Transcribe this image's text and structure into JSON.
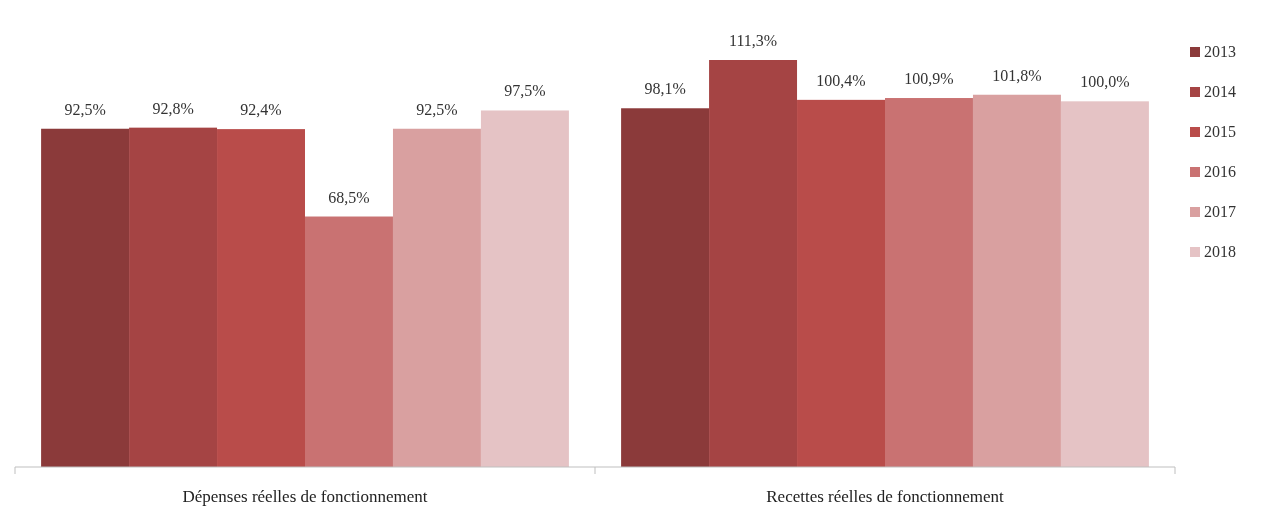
{
  "chart_data": {
    "type": "bar",
    "categories": [
      "Dépenses réelles de fonctionnement",
      "Recettes réelles de fonctionnement"
    ],
    "legend": "right",
    "series": [
      {
        "name": "2013",
        "color": "#8b3a3a",
        "values": [
          92.5,
          98.1
        ],
        "value_labels": [
          "92,5%",
          "98,1%"
        ]
      },
      {
        "name": "2014",
        "color": "#a54444",
        "values": [
          92.8,
          111.3
        ],
        "value_labels": [
          "92,8%",
          "111,3%"
        ]
      },
      {
        "name": "2015",
        "color": "#b94c4a",
        "values": [
          92.4,
          100.4
        ],
        "value_labels": [
          "92,4%",
          "100,4%"
        ]
      },
      {
        "name": "2016",
        "color": "#c97272",
        "values": [
          68.5,
          100.9
        ],
        "value_labels": [
          "68,5%",
          "100,9%"
        ]
      },
      {
        "name": "2017",
        "color": "#d9a0a0",
        "values": [
          92.5,
          101.8
        ],
        "value_labels": [
          "92,5%",
          "101,8%"
        ]
      },
      {
        "name": "2018",
        "color": "#e5c3c5",
        "values": [
          97.5,
          100.0
        ],
        "value_labels": [
          "97,5%",
          "100,0%"
        ]
      }
    ]
  }
}
